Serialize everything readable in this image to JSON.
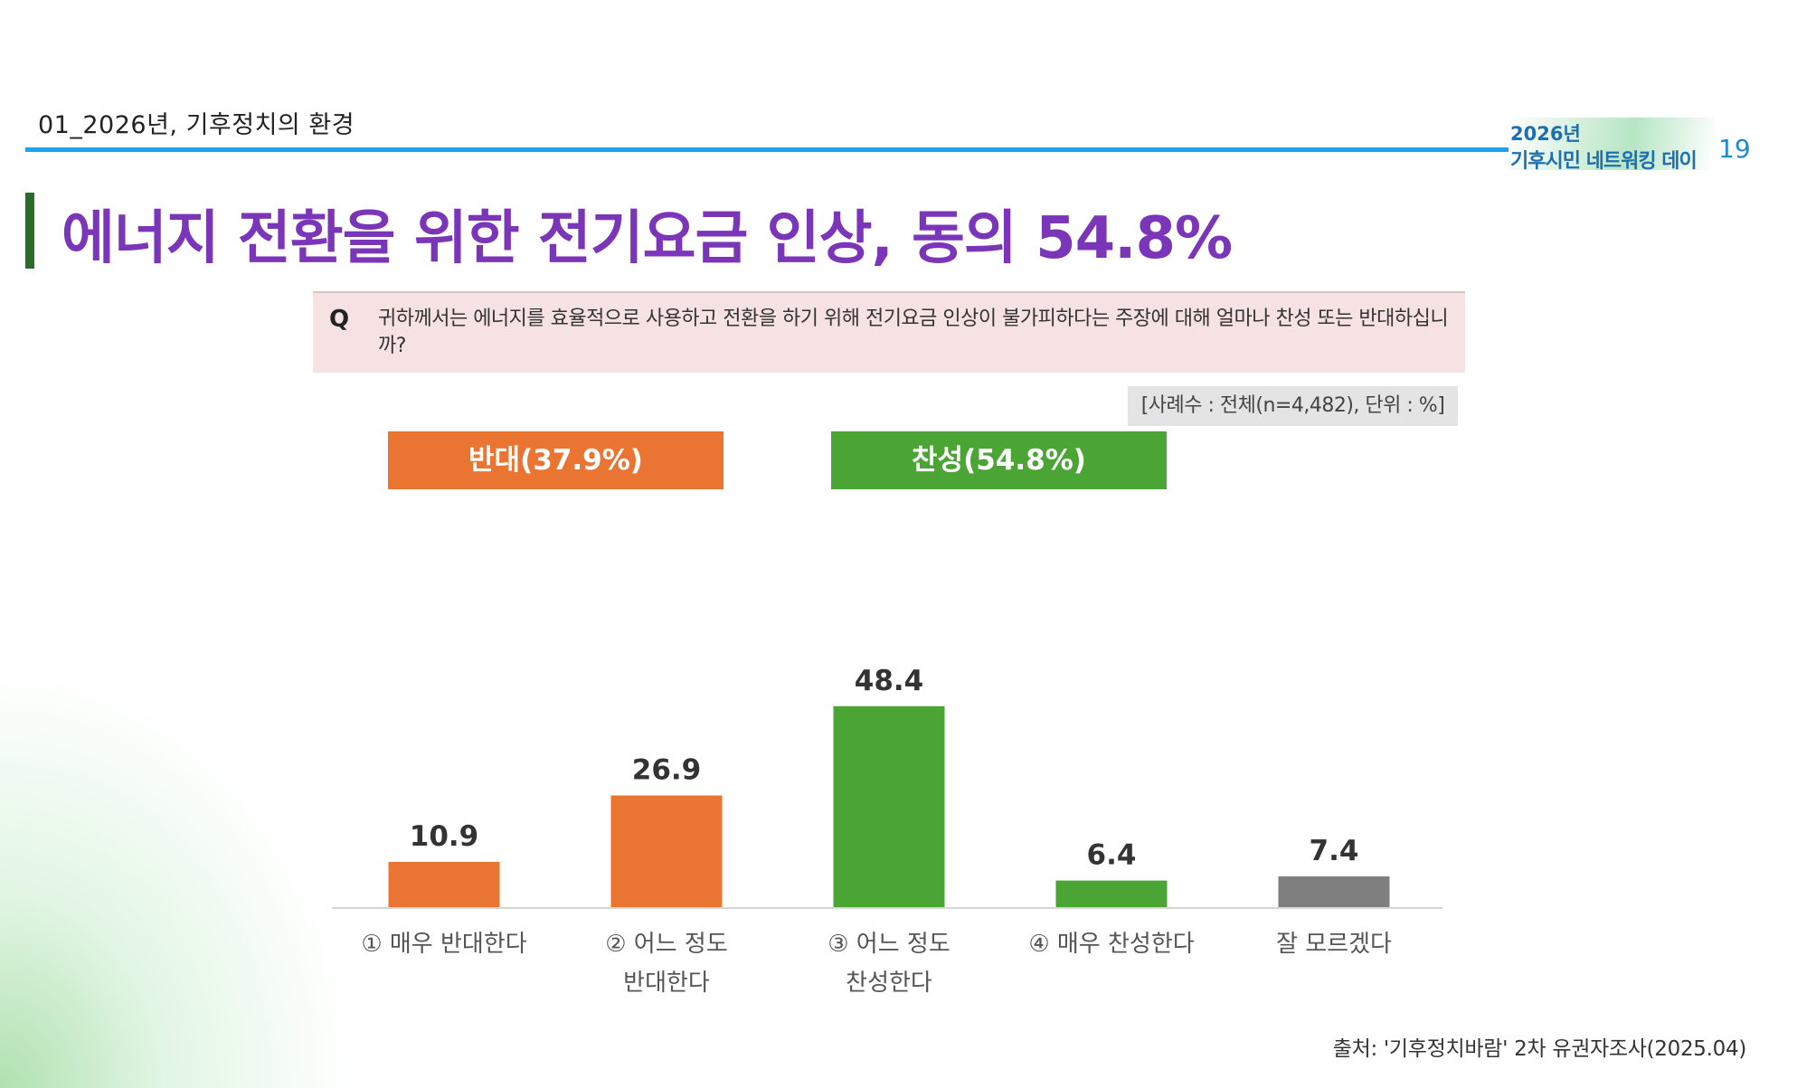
{
  "header": {
    "section_label": "01_2026년, 기후정치의 환경",
    "event_logo_line1": "2026년",
    "event_logo_line2": "기후시민 네트워킹 데이",
    "page_number": "19",
    "accent_color": "#1da3e8"
  },
  "title": "에너지 전환을 위한 전기요금 인상, 동의 54.8%",
  "question": {
    "mark": "Q",
    "text": "귀하께서는 에너지를 효율적으로 사용하고 전환을 하기 위해 전기요금 인상이 불가피하다는 주장에 대해 얼마나 찬성 또는 반대하십니까?"
  },
  "sample_note": "[사례수 : 전체(n=4,482), 단위 : %]",
  "groups": {
    "oppose_label": "반대(37.9%)",
    "support_label": "찬성(54.8%)",
    "oppose_color": "#ea7533",
    "support_color": "#4aa535"
  },
  "chart_data": {
    "type": "bar",
    "title": "",
    "xlabel": "",
    "ylabel": "",
    "ylim": [
      0,
      55
    ],
    "categories": [
      [
        "① 매우 반대한다"
      ],
      [
        "② 어느 정도",
        "반대한다"
      ],
      [
        "③ 어느 정도",
        "찬성한다"
      ],
      [
        "④ 매우 찬성한다"
      ],
      [
        "잘 모르겠다"
      ]
    ],
    "values": [
      10.9,
      26.9,
      48.4,
      6.4,
      7.4
    ],
    "value_labels": [
      "10.9",
      "26.9",
      "48.4",
      "6.4",
      "7.4"
    ],
    "colors": [
      "#ea7533",
      "#ea7533",
      "#4aa535",
      "#4aa535",
      "#7f7f7f"
    ],
    "grid": false
  },
  "source": "출처: '기후정치바람' 2차 유권자조사(2025.04)"
}
